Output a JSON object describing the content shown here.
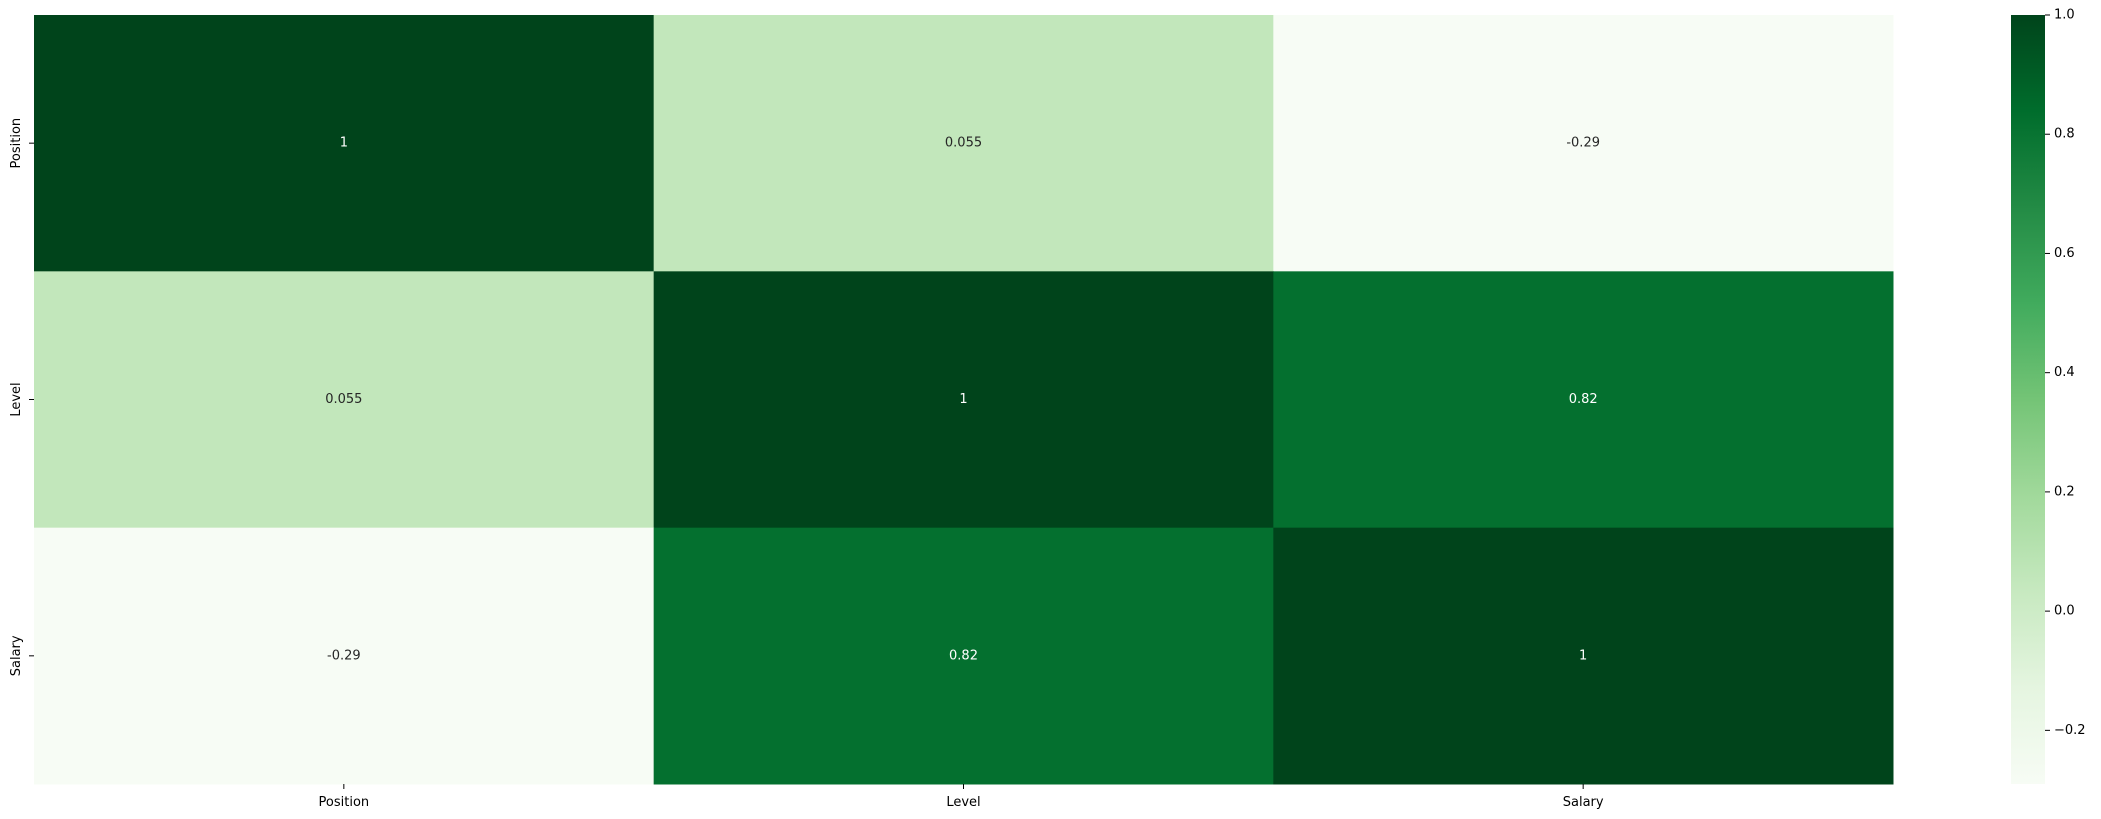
{
  "chart_data": {
    "type": "heatmap",
    "title": "",
    "xlabel": "",
    "ylabel": "",
    "x_categories": [
      "Position",
      "Level",
      "Salary"
    ],
    "y_categories": [
      "Position",
      "Level",
      "Salary"
    ],
    "values": [
      [
        1,
        0.055,
        -0.29
      ],
      [
        0.055,
        1,
        0.82
      ],
      [
        -0.29,
        0.82,
        1
      ]
    ],
    "cell_labels": [
      [
        "1",
        "0.055",
        "-0.29"
      ],
      [
        "0.055",
        "1",
        "0.82"
      ],
      [
        "-0.29",
        "0.82",
        "1"
      ]
    ],
    "colormap": "Greens",
    "vmin": -0.29,
    "vmax": 1.0,
    "colorbar": {
      "ticks": [
        1.0,
        0.8,
        0.6,
        0.4,
        0.2,
        0.0,
        -0.2
      ],
      "tick_labels": [
        "1.0",
        "0.8",
        "0.6",
        "0.4",
        "0.2",
        "0.0",
        "−0.2"
      ]
    },
    "grid": false,
    "colors": {
      "low": "#f7fcf5",
      "high": "#00441b"
    }
  }
}
